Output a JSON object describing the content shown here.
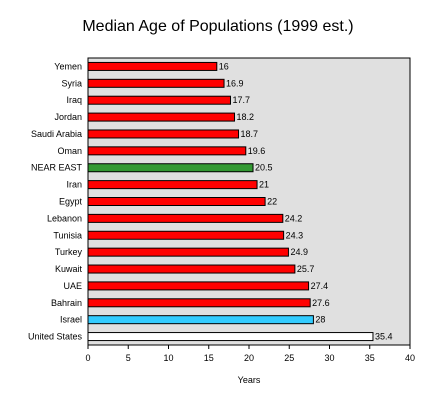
{
  "chart_data": {
    "type": "bar",
    "orientation": "horizontal",
    "title": "Median Age of Populations (1999 est.)",
    "xlabel": "Years",
    "ylabel": "",
    "xlim": [
      0,
      40
    ],
    "x_ticks": [
      "0",
      "5",
      "10",
      "15",
      "20",
      "25",
      "30",
      "35",
      "40"
    ],
    "grid": false,
    "legend": "none",
    "plot_background": "#e0e0e0",
    "categories": [
      "Yemen",
      "Syria",
      "Iraq",
      "Jordan",
      "Saudi Arabia",
      "Oman",
      "NEAR EAST",
      "Iran",
      "Egypt",
      "Lebanon",
      "Tunisia",
      "Turkey",
      "Kuwait",
      "UAE",
      "Bahrain",
      "Israel",
      "United States"
    ],
    "values": [
      16,
      16.9,
      17.7,
      18.2,
      18.7,
      19.6,
      20.5,
      21,
      22,
      24.2,
      24.3,
      24.9,
      25.7,
      27.4,
      27.6,
      28,
      35.4
    ],
    "value_labels": [
      "16",
      "16.9",
      "17.7",
      "18.2",
      "18.7",
      "19.6",
      "20.5",
      "21",
      "22",
      "24.2",
      "24.3",
      "24.9",
      "25.7",
      "27.4",
      "27.6",
      "28",
      "35.4"
    ],
    "bar_colors": [
      "#ff0000",
      "#ff0000",
      "#ff0000",
      "#ff0000",
      "#ff0000",
      "#ff0000",
      "#339933",
      "#ff0000",
      "#ff0000",
      "#ff0000",
      "#ff0000",
      "#ff0000",
      "#ff0000",
      "#ff0000",
      "#ff0000",
      "#33ccff",
      "#ffffff"
    ]
  }
}
